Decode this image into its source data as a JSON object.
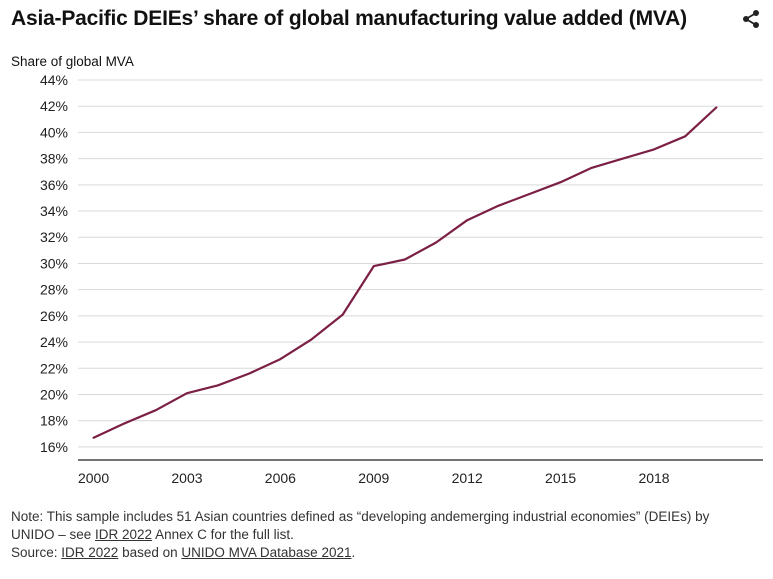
{
  "title": "Asia-Pacific DEIEs’ share of global manufacturing value added (MVA)",
  "share_icon": "share-icon",
  "colors": {
    "line": "#7b1f45",
    "grid": "#d9d9d9",
    "axis": "#222222"
  },
  "chart_data": {
    "type": "line",
    "title": "Asia-Pacific DEIEs’ share of global manufacturing value added (MVA)",
    "ylabel": "Share of global MVA",
    "xlabel": "",
    "ylim": [
      15,
      44
    ],
    "xlim": [
      1999.5,
      2021.5
    ],
    "yticks": [
      16,
      18,
      20,
      22,
      24,
      26,
      28,
      30,
      32,
      34,
      36,
      38,
      40,
      42,
      44
    ],
    "ytick_labels": [
      "16%",
      "18%",
      "20%",
      "22%",
      "24%",
      "26%",
      "28%",
      "30%",
      "32%",
      "34%",
      "36%",
      "38%",
      "40%",
      "42%",
      "44%"
    ],
    "xticks": [
      2000,
      2003,
      2006,
      2009,
      2012,
      2015,
      2018
    ],
    "xtick_labels": [
      "2000",
      "2003",
      "2006",
      "2009",
      "2012",
      "2015",
      "2018"
    ],
    "grid": true,
    "series": [
      {
        "name": "Asia-Pacific DEIEs",
        "x": [
          2000,
          2001,
          2002,
          2003,
          2004,
          2005,
          2006,
          2007,
          2008,
          2009,
          2010,
          2011,
          2012,
          2013,
          2014,
          2015,
          2016,
          2017,
          2018,
          2019,
          2020
        ],
        "values": [
          16.7,
          17.8,
          18.8,
          20.1,
          20.7,
          21.6,
          22.7,
          24.2,
          26.1,
          29.8,
          30.3,
          31.6,
          33.3,
          34.4,
          35.3,
          36.2,
          37.3,
          38.0,
          38.7,
          39.7,
          41.9
        ]
      }
    ]
  },
  "note": {
    "line1": "Note: This sample includes 51 Asian countries defined as “developing andemerging industrial economies” (DEIEs) by",
    "line2_a": "UNIDO – see ",
    "line2_link": "IDR 2022",
    "line2_b": " Annex C for the full list.",
    "source_a": "Source: ",
    "source_link1": "IDR 2022",
    "source_b": " based on ",
    "source_link2": "UNIDO MVA Database 2021",
    "source_c": "."
  }
}
